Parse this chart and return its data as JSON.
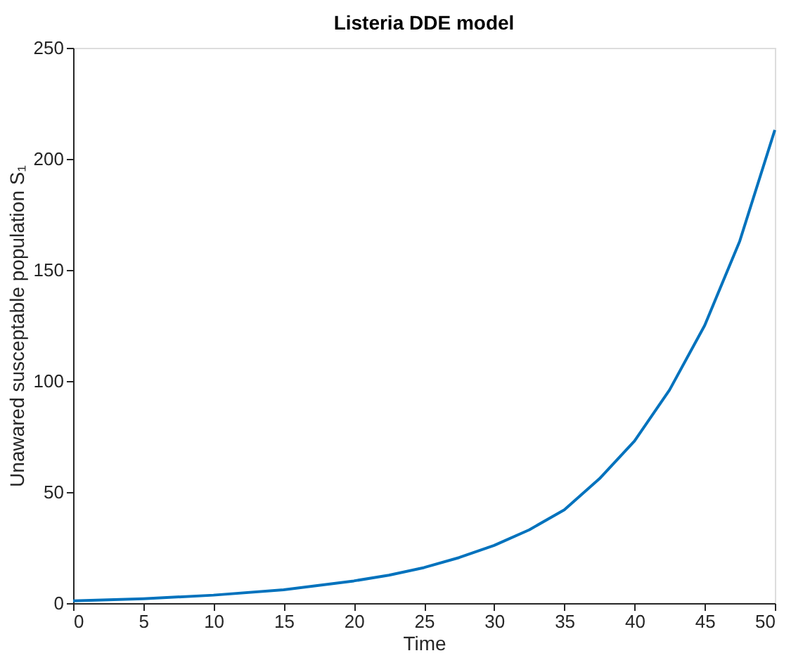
{
  "chart_data": {
    "type": "line",
    "title": "Listeria DDE model",
    "xlabel": "Time",
    "ylabel": "Unawared susceptable population S₁",
    "x": [
      0,
      5,
      10,
      15,
      20,
      22.5,
      25,
      27.5,
      30,
      32.5,
      35,
      37.5,
      40,
      42.5,
      45,
      47.5,
      50
    ],
    "series": [
      {
        "color": "#0072bd",
        "values": [
          1,
          2,
          3.6,
          6,
          10,
          12.6,
          16,
          20.5,
          26,
          33,
          42,
          56,
          73,
          96,
          125,
          163,
          213
        ]
      }
    ],
    "xlim": [
      0,
      50
    ],
    "ylim": [
      0,
      250
    ],
    "xticks": [
      0,
      5,
      10,
      15,
      20,
      25,
      30,
      35,
      40,
      45,
      50
    ],
    "yticks": [
      0,
      50,
      100,
      150,
      200,
      250
    ],
    "grid": false,
    "legend": false,
    "marker": "none",
    "line_style": "solid"
  }
}
